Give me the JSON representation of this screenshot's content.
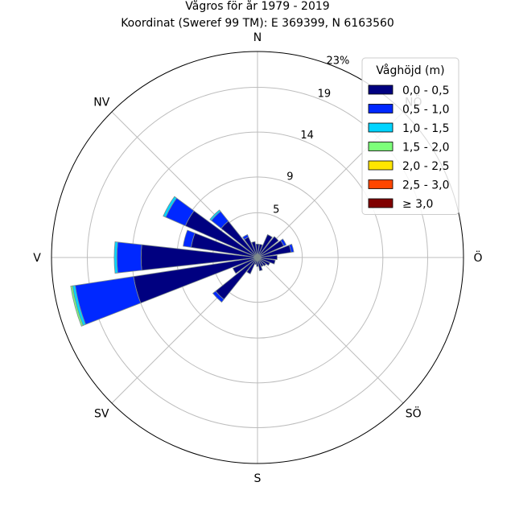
{
  "chart_data": {
    "type": "windrose",
    "title": "Vågros för år 1979 - 2019",
    "subtitle": "Koordinat (Sweref 99 TM): E 369399, N 6163560",
    "directions": [
      "N",
      "NÖ",
      "Ö",
      "SÖ",
      "S",
      "SV",
      "V",
      "NV"
    ],
    "radial_ticks": [
      "5",
      "9",
      "14",
      "19",
      "23%"
    ],
    "radial_tick_values": [
      5,
      9,
      14,
      19,
      23
    ],
    "rmax": 23,
    "grid": true,
    "legend": {
      "title": "Våghöjd (m)",
      "placement": "top-right",
      "entries": [
        {
          "label": "0,0 - 0,5",
          "color": "#000080"
        },
        {
          "label": "0,5 - 1,0",
          "color": "#0028ff"
        },
        {
          "label": "1,0 - 1,5",
          "color": "#00d4ff"
        },
        {
          "label": "1,5 - 2,0",
          "color": "#7dff7a"
        },
        {
          "label": "2,0 - 2,5",
          "color": "#ffe600"
        },
        {
          "label": "2,5 - 3,0",
          "color": "#ff4600"
        },
        {
          "label": "≥ 3,0",
          "color": "#800000"
        }
      ]
    },
    "sectors": [
      {
        "direction_deg": 0,
        "values": [
          1.5
        ]
      },
      {
        "direction_deg": 15,
        "values": [
          1.5
        ]
      },
      {
        "direction_deg": 30,
        "values": [
          2.8
        ]
      },
      {
        "direction_deg": 45,
        "values": [
          3.0
        ]
      },
      {
        "direction_deg": 60,
        "values": [
          3.2,
          0.3
        ]
      },
      {
        "direction_deg": 75,
        "values": [
          3.8,
          0.3
        ]
      },
      {
        "direction_deg": 90,
        "values": [
          2.2
        ]
      },
      {
        "direction_deg": 105,
        "values": [
          2.0
        ]
      },
      {
        "direction_deg": 120,
        "values": [
          1.5
        ]
      },
      {
        "direction_deg": 135,
        "values": [
          1.2
        ]
      },
      {
        "direction_deg": 150,
        "values": [
          1.1
        ]
      },
      {
        "direction_deg": 165,
        "values": [
          1.5
        ]
      },
      {
        "direction_deg": 180,
        "values": [
          1.0
        ]
      },
      {
        "direction_deg": 195,
        "values": [
          0.8
        ]
      },
      {
        "direction_deg": 210,
        "values": [
          2.0
        ]
      },
      {
        "direction_deg": 225,
        "values": [
          6.0,
          0.4
        ]
      },
      {
        "direction_deg": 240,
        "values": [
          3.0
        ]
      },
      {
        "direction_deg": 255,
        "values": [
          14.0,
          6.6,
          0.3,
          0.2
        ]
      },
      {
        "direction_deg": 270,
        "values": [
          13.0,
          2.7,
          0.3
        ]
      },
      {
        "direction_deg": 285,
        "values": [
          7.5,
          0.9
        ]
      },
      {
        "direction_deg": 300,
        "values": [
          8.8,
          2.4,
          0.3
        ]
      },
      {
        "direction_deg": 315,
        "values": [
          5.2,
          1.4,
          0.2
        ]
      },
      {
        "direction_deg": 330,
        "values": [
          2.5,
          0.3
        ]
      },
      {
        "direction_deg": 345,
        "values": [
          1.8
        ]
      }
    ]
  }
}
